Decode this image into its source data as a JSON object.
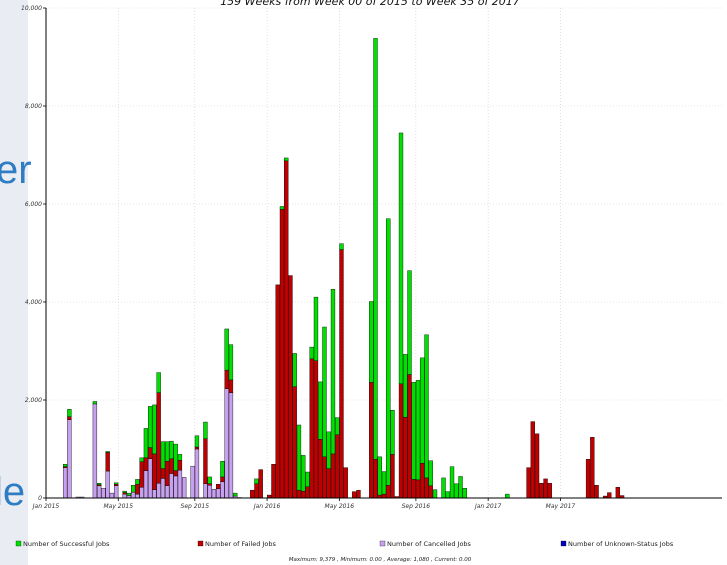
{
  "slide": {
    "text_top": "er",
    "text_bottom": "le"
  },
  "chart_data": {
    "type": "bar",
    "stacked": true,
    "title": "159 Weeks from Week 00 of 2015 to Week 35 of 2017",
    "ylim": [
      0,
      10000
    ],
    "y_ticks": [
      "0",
      "2,000",
      "4,000",
      "6,000",
      "8,000",
      "10,000"
    ],
    "y_tick_values": [
      0,
      2000,
      4000,
      6000,
      8000,
      10000
    ],
    "x_ticks": [
      "Jan 2015",
      "May 2015",
      "Sep 2015",
      "Jan 2016",
      "May 2016",
      "Sep 2016",
      "Jan 2017",
      "May 2017"
    ],
    "x_tick_weeks": [
      0,
      17,
      35,
      52,
      69,
      87,
      104,
      121
    ],
    "grid": true,
    "weeks_count": 159,
    "series": [
      {
        "name": "Number of Successful Jobs",
        "color": "#00e000"
      },
      {
        "name": "Number of Failed Jobs",
        "color": "#c00000"
      },
      {
        "name": "Number of Cancelled Jobs",
        "color": "#c8a0f0"
      },
      {
        "name": "Number of Unknown-Status Jobs",
        "color": "#0000c0"
      }
    ],
    "bars": [
      {
        "week": 4,
        "successful": 50,
        "failed": 20,
        "cancelled": 620
      },
      {
        "week": 5,
        "successful": 150,
        "failed": 60,
        "cancelled": 1600
      },
      {
        "week": 7,
        "successful": 0,
        "failed": 0,
        "cancelled": 20
      },
      {
        "week": 8,
        "successful": 0,
        "failed": 0,
        "cancelled": 20
      },
      {
        "week": 11,
        "successful": 50,
        "failed": 0,
        "cancelled": 1920
      },
      {
        "week": 12,
        "successful": 30,
        "failed": 20,
        "cancelled": 250
      },
      {
        "week": 13,
        "successful": 0,
        "failed": 0,
        "cancelled": 200
      },
      {
        "week": 14,
        "successful": 20,
        "failed": 380,
        "cancelled": 550
      },
      {
        "week": 15,
        "successful": 0,
        "failed": 0,
        "cancelled": 100
      },
      {
        "week": 16,
        "successful": 30,
        "failed": 30,
        "cancelled": 250
      },
      {
        "week": 18,
        "successful": 30,
        "failed": 30,
        "cancelled": 80
      },
      {
        "week": 19,
        "successful": 50,
        "failed": 0,
        "cancelled": 50
      },
      {
        "week": 20,
        "successful": 140,
        "failed": 0,
        "cancelled": 120
      },
      {
        "week": 21,
        "successful": 100,
        "failed": 200,
        "cancelled": 80
      },
      {
        "week": 22,
        "successful": 80,
        "failed": 520,
        "cancelled": 220
      },
      {
        "week": 23,
        "successful": 600,
        "failed": 260,
        "cancelled": 560
      },
      {
        "week": 24,
        "successful": 840,
        "failed": 230,
        "cancelled": 800
      },
      {
        "week": 25,
        "successful": 1000,
        "failed": 730,
        "cancelled": 170
      },
      {
        "week": 26,
        "successful": 410,
        "failed": 1850,
        "cancelled": 300
      },
      {
        "week": 27,
        "successful": 550,
        "failed": 200,
        "cancelled": 400
      },
      {
        "week": 28,
        "successful": 400,
        "failed": 500,
        "cancelled": 250
      },
      {
        "week": 29,
        "successful": 360,
        "failed": 300,
        "cancelled": 500
      },
      {
        "week": 30,
        "successful": 540,
        "failed": 110,
        "cancelled": 450
      },
      {
        "week": 31,
        "successful": 120,
        "failed": 200,
        "cancelled": 570
      },
      {
        "week": 32,
        "successful": 0,
        "failed": 0,
        "cancelled": 420
      },
      {
        "week": 34,
        "successful": 0,
        "failed": 0,
        "cancelled": 650
      },
      {
        "week": 35,
        "successful": 230,
        "failed": 40,
        "cancelled": 1000
      },
      {
        "week": 37,
        "successful": 340,
        "failed": 920,
        "cancelled": 290
      },
      {
        "week": 38,
        "successful": 140,
        "failed": 30,
        "cancelled": 260
      },
      {
        "week": 39,
        "successful": 0,
        "failed": 0,
        "cancelled": 180
      },
      {
        "week": 40,
        "successful": 0,
        "failed": 90,
        "cancelled": 190
      },
      {
        "week": 41,
        "successful": 320,
        "failed": 100,
        "cancelled": 330
      },
      {
        "week": 42,
        "successful": 840,
        "failed": 380,
        "cancelled": 2230
      },
      {
        "week": 43,
        "successful": 720,
        "failed": 260,
        "cancelled": 2150
      },
      {
        "week": 44,
        "successful": 60,
        "failed": 0,
        "cancelled": 40
      },
      {
        "week": 45,
        "successful": 0,
        "failed": 0,
        "cancelled": 10
      },
      {
        "week": 48,
        "successful": 0,
        "failed": 160,
        "cancelled": 0
      },
      {
        "week": 49,
        "successful": 100,
        "failed": 290,
        "cancelled": 0
      },
      {
        "week": 50,
        "successful": 0,
        "failed": 580,
        "cancelled": 0
      },
      {
        "week": 52,
        "successful": 0,
        "failed": 60,
        "cancelled": 0
      },
      {
        "week": 53,
        "successful": 0,
        "failed": 690,
        "cancelled": 0
      },
      {
        "week": 54,
        "successful": 0,
        "failed": 4350,
        "cancelled": 0
      },
      {
        "week": 55,
        "successful": 60,
        "failed": 5890,
        "cancelled": 0
      },
      {
        "week": 56,
        "successful": 60,
        "failed": 6880,
        "cancelled": 0
      },
      {
        "week": 57,
        "successful": 0,
        "failed": 4540,
        "cancelled": 0
      },
      {
        "week": 58,
        "successful": 680,
        "failed": 2270,
        "cancelled": 0
      },
      {
        "week": 59,
        "successful": 1330,
        "failed": 160,
        "cancelled": 0
      },
      {
        "week": 60,
        "successful": 730,
        "failed": 140,
        "cancelled": 0
      },
      {
        "week": 61,
        "successful": 300,
        "failed": 230,
        "cancelled": 0
      },
      {
        "week": 62,
        "successful": 240,
        "failed": 2840,
        "cancelled": 0
      },
      {
        "week": 63,
        "successful": 1300,
        "failed": 2800,
        "cancelled": 0
      },
      {
        "week": 64,
        "successful": 1170,
        "failed": 1200,
        "cancelled": 0
      },
      {
        "week": 65,
        "successful": 2650,
        "failed": 840,
        "cancelled": 0
      },
      {
        "week": 66,
        "successful": 750,
        "failed": 600,
        "cancelled": 0
      },
      {
        "week": 67,
        "successful": 3360,
        "failed": 900,
        "cancelled": 0
      },
      {
        "week": 68,
        "successful": 350,
        "failed": 1290,
        "cancelled": 0
      },
      {
        "week": 69,
        "successful": 120,
        "failed": 5070,
        "cancelled": 0
      },
      {
        "week": 70,
        "successful": 0,
        "failed": 620,
        "cancelled": 0
      },
      {
        "week": 72,
        "successful": 0,
        "failed": 130,
        "cancelled": 0
      },
      {
        "week": 73,
        "successful": 0,
        "failed": 160,
        "cancelled": 0
      },
      {
        "week": 76,
        "successful": 1650,
        "failed": 2360,
        "cancelled": 0
      },
      {
        "week": 77,
        "successful": 8590,
        "failed": 790,
        "cancelled": 0
      },
      {
        "week": 78,
        "successful": 780,
        "failed": 60,
        "cancelled": 0
      },
      {
        "week": 79,
        "successful": 460,
        "failed": 80,
        "cancelled": 0
      },
      {
        "week": 80,
        "successful": 5440,
        "failed": 260,
        "cancelled": 0
      },
      {
        "week": 81,
        "successful": 900,
        "failed": 890,
        "cancelled": 0
      },
      {
        "week": 82,
        "successful": 0,
        "failed": 30,
        "cancelled": 0
      },
      {
        "week": 83,
        "successful": 5120,
        "failed": 2330,
        "cancelled": 0
      },
      {
        "week": 84,
        "successful": 1280,
        "failed": 1650,
        "cancelled": 0
      },
      {
        "week": 85,
        "successful": 2120,
        "failed": 2520,
        "cancelled": 0
      },
      {
        "week": 86,
        "successful": 1980,
        "failed": 380,
        "cancelled": 0
      },
      {
        "week": 87,
        "successful": 2030,
        "failed": 370,
        "cancelled": 0
      },
      {
        "week": 88,
        "successful": 2150,
        "failed": 710,
        "cancelled": 0
      },
      {
        "week": 89,
        "successful": 2920,
        "failed": 410,
        "cancelled": 0
      },
      {
        "week": 90,
        "successful": 510,
        "failed": 250,
        "cancelled": 0
      },
      {
        "week": 91,
        "successful": 170,
        "failed": 0,
        "cancelled": 0
      },
      {
        "week": 93,
        "successful": 410,
        "failed": 0,
        "cancelled": 0
      },
      {
        "week": 94,
        "successful": 130,
        "failed": 0,
        "cancelled": 0
      },
      {
        "week": 95,
        "successful": 640,
        "failed": 0,
        "cancelled": 0
      },
      {
        "week": 96,
        "successful": 290,
        "failed": 0,
        "cancelled": 0
      },
      {
        "week": 97,
        "successful": 440,
        "failed": 0,
        "cancelled": 0
      },
      {
        "week": 98,
        "successful": 200,
        "failed": 0,
        "cancelled": 0
      },
      {
        "week": 108,
        "successful": 80,
        "failed": 0,
        "cancelled": 0
      },
      {
        "week": 113,
        "successful": 0,
        "failed": 620,
        "cancelled": 0
      },
      {
        "week": 114,
        "successful": 0,
        "failed": 1560,
        "cancelled": 0
      },
      {
        "week": 115,
        "successful": 0,
        "failed": 1310,
        "cancelled": 0
      },
      {
        "week": 116,
        "successful": 0,
        "failed": 300,
        "cancelled": 0
      },
      {
        "week": 117,
        "successful": 0,
        "failed": 390,
        "cancelled": 0
      },
      {
        "week": 118,
        "successful": 0,
        "failed": 300,
        "cancelled": 0
      },
      {
        "week": 127,
        "successful": 0,
        "failed": 790,
        "cancelled": 0
      },
      {
        "week": 128,
        "successful": 0,
        "failed": 1240,
        "cancelled": 0
      },
      {
        "week": 129,
        "successful": 0,
        "failed": 260,
        "cancelled": 0
      },
      {
        "week": 131,
        "successful": 0,
        "failed": 40,
        "cancelled": 0
      },
      {
        "week": 132,
        "successful": 0,
        "failed": 110,
        "cancelled": 0
      },
      {
        "week": 134,
        "successful": 0,
        "failed": 220,
        "cancelled": 0
      },
      {
        "week": 135,
        "successful": 0,
        "failed": 50,
        "cancelled": 0
      }
    ],
    "stats_text": "Maximum: 9,379 , Minimum: 0.00 , Average: 1,080 , Current: 0.00"
  }
}
